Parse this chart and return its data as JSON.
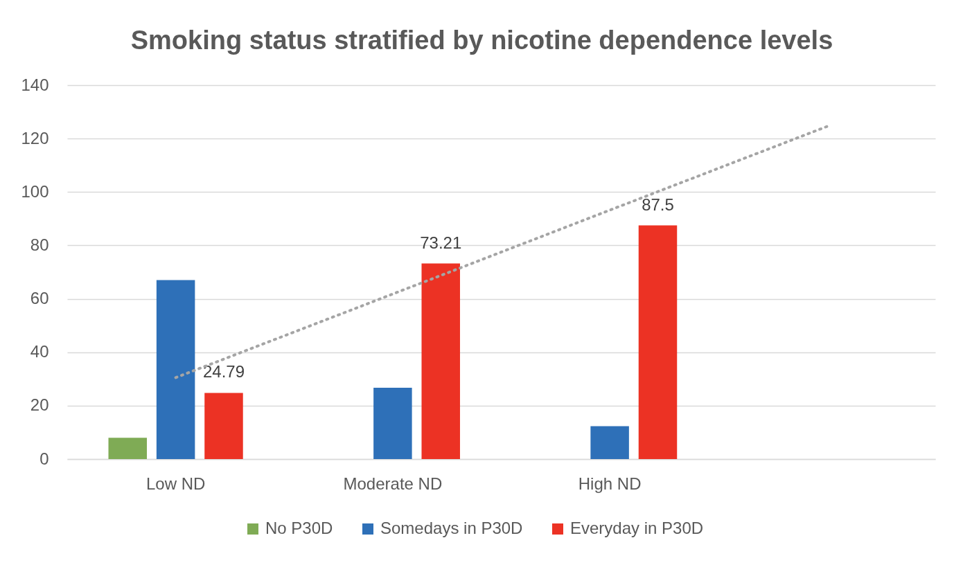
{
  "chart_data": {
    "type": "bar",
    "title": "Smoking status stratified by nicotine dependence levels",
    "categories": [
      "Low ND",
      "Moderate ND",
      "High ND",
      null
    ],
    "series": [
      {
        "name": "No P30D",
        "color": "#7fab55",
        "values": [
          8,
          null,
          null,
          null
        ]
      },
      {
        "name": "Somedays in P30D",
        "color": "#2e70b8",
        "values": [
          67,
          26.7,
          12.3,
          null
        ]
      },
      {
        "name": "Everyday in P30D",
        "color": "#ec3224",
        "values": [
          24.79,
          73.21,
          87.5,
          null
        ],
        "value_labels": [
          "24.79",
          "73.21",
          "87.5",
          null
        ]
      },
      {
        "type": "line",
        "color": "#a5a5a5",
        "line_style": "dotted",
        "values": [
          30.5,
          61.8,
          93.2,
          124.5
        ]
      }
    ],
    "ylim": [
      0,
      140
    ],
    "yticks": [
      0,
      20,
      40,
      60,
      80,
      100,
      120,
      140
    ],
    "grid": "y",
    "legend": "bottom"
  }
}
